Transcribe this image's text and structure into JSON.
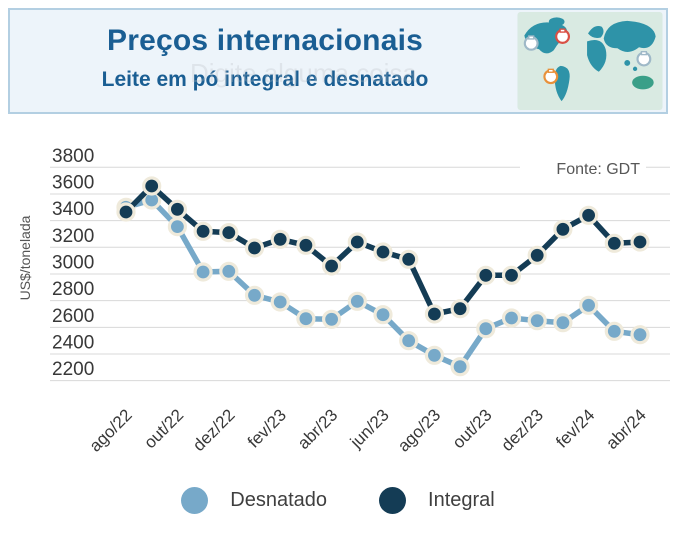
{
  "header": {
    "title": "Preços internacionais",
    "subtitle": "Leite em pó integral e desnatado",
    "watermark": "Digite alguma coisa"
  },
  "chart": {
    "source_label": "Fonte: GDT",
    "y_axis_title": "US$/tonelada"
  },
  "colors": {
    "integral": "#143c55",
    "desnatado": "#77a9c9",
    "point_halo": "#efeadb",
    "gridline": "#d8d8d8",
    "tick_text": "#383838",
    "source_text": "#575757",
    "title_blue": "#1a5e93",
    "header_bg": "#edf4fa",
    "header_border": "#b3cfe2",
    "map_bg": "#d9eae2",
    "map_land": "#2e93a8"
  },
  "chart_data": {
    "type": "line",
    "title": "Preços internacionais - Leite em pó integral e desnatado",
    "xlabel": "",
    "ylabel": "US$/tonelada",
    "ylim": [
      2200,
      3800
    ],
    "grid": true,
    "legend_position": "bottom",
    "y_ticks": [
      3800,
      3600,
      3400,
      3200,
      3000,
      2800,
      2600,
      2400,
      2200
    ],
    "x": [
      "ago/22",
      "set/22",
      "out/22",
      "nov/22",
      "dez/22",
      "jan/23",
      "fev/23",
      "mar/23",
      "abr/23",
      "mai/23",
      "jun/23",
      "jul/23",
      "ago/23",
      "set/23",
      "out/23",
      "nov/23",
      "dez/23",
      "jan/24",
      "fev/24",
      "mar/24",
      "abr/24"
    ],
    "x_tick_labels": [
      "ago/22",
      "out/22",
      "dez/22",
      "fev/23",
      "abr/23",
      "jun/23",
      "ago/23",
      "out/23",
      "dez/23",
      "fev/24",
      "abr/24"
    ],
    "series": [
      {
        "name": "Desnatado",
        "color": "#77a9c9",
        "values": [
          3500,
          3555,
          3355,
          3015,
          3020,
          2840,
          2790,
          2665,
          2660,
          2795,
          2695,
          2500,
          2390,
          2305,
          2590,
          2670,
          2650,
          2635,
          2765,
          2570,
          2545
        ]
      },
      {
        "name": "Integral",
        "color": "#143c55",
        "values": [
          3465,
          3660,
          3485,
          3320,
          3310,
          3195,
          3260,
          3215,
          3060,
          3240,
          3165,
          3110,
          2700,
          2740,
          2990,
          2990,
          3140,
          3335,
          3440,
          3230,
          3240
        ]
      }
    ],
    "source": "Fonte: GDT"
  }
}
